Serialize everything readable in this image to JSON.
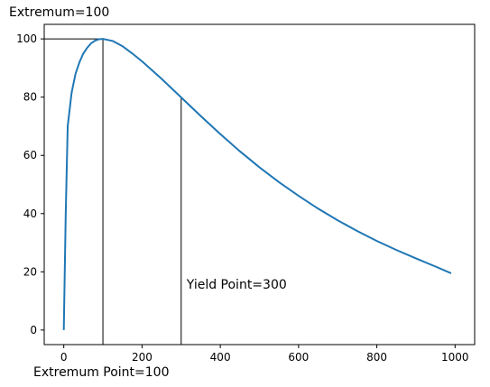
{
  "chart_data": {
    "type": "line",
    "title": "",
    "xlabel": "",
    "ylabel": "",
    "xlim": [
      -50,
      1050
    ],
    "ylim": [
      -5,
      105
    ],
    "grid": false,
    "xticks": [
      0,
      200,
      400,
      600,
      800,
      1000
    ],
    "yticks": [
      0,
      20,
      40,
      60,
      80,
      100
    ],
    "series": [
      {
        "color": "#1f77b4",
        "x": [
          0,
          5,
          10,
          20,
          30,
          40,
          50,
          60,
          70,
          80,
          90,
          100,
          125,
          150,
          175,
          200,
          250,
          300,
          350,
          400,
          450,
          500,
          550,
          600,
          650,
          700,
          750,
          800,
          850,
          900,
          950,
          990
        ],
        "y": [
          0,
          40,
          70,
          81.5,
          88,
          92,
          95,
          97,
          98.5,
          99.4,
          99.9,
          100,
          99.3,
          97.5,
          95,
          92.3,
          86.3,
          79.9,
          73.5,
          67.3,
          61.4,
          55.9,
          50.8,
          46.1,
          41.7,
          37.7,
          34.0,
          30.6,
          27.5,
          24.6,
          21.8,
          19.5
        ]
      }
    ],
    "annotations": {
      "extremum_value_label": "Extremum=100",
      "extremum_point_label": "Extremum Point=100",
      "yield_point_label": "Yield Point=300",
      "extremum_x": 100,
      "extremum_y": 100,
      "yield_x": 300,
      "yield_y": 79.9
    }
  }
}
